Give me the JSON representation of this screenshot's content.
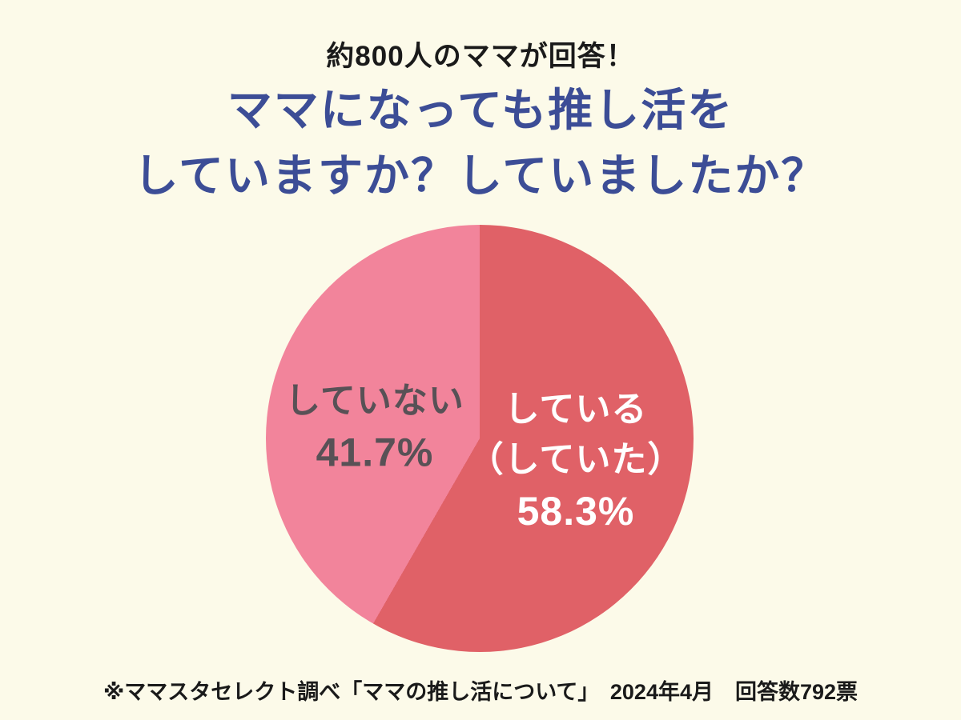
{
  "page": {
    "background_color": "#FCFAE9"
  },
  "header": {
    "subtitle": "約800人のママが回答！",
    "subtitle_color": "#1A1A1A",
    "title_line1": "ママになっても推し活を",
    "title_line2": "していますか？していましたか？",
    "title_color": "#3C4D96"
  },
  "chart_data": {
    "type": "pie",
    "title": "ママになっても推し活をしていますか？していましたか？",
    "subtitle": "約800人のママが回答！",
    "source": "※ママスタセレクト調べ「ママの推し活について」　2024年4月　回答数792票",
    "start_angle_deg": 0,
    "direction": "clockwise",
    "legend": "none",
    "total_responses": 792,
    "slices": [
      {
        "name": "している（していた）",
        "label_line1": "している",
        "label_line2": "（していた）",
        "value_pct": 58.3,
        "value_label": "58.3%",
        "color": "#E06167",
        "label_color": "#FFFFFF"
      },
      {
        "name": "していない",
        "label_line1": "していない",
        "value_pct": 41.7,
        "value_label": "41.7%",
        "color": "#F2849B",
        "label_color": "#585156"
      }
    ]
  },
  "footer": {
    "source_note": "※ママスタセレクト調べ「ママの推し活について」　2024年4月　回答数792票",
    "color": "#1A1A1A"
  }
}
